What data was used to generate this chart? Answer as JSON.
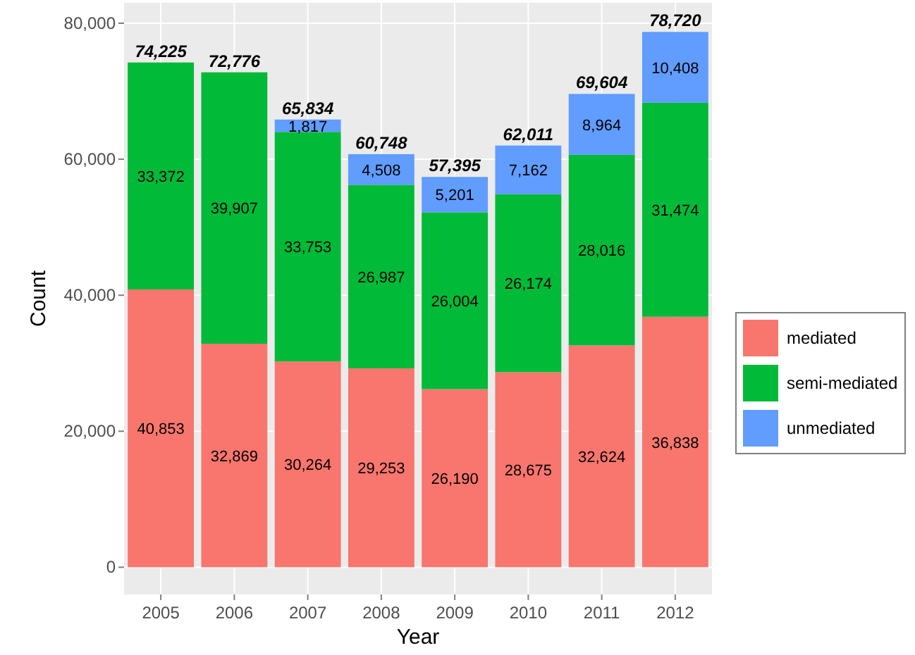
{
  "chart_data": {
    "type": "bar",
    "stacked": true,
    "xlabel": "Year",
    "ylabel": "Count",
    "categories": [
      "2005",
      "2006",
      "2007",
      "2008",
      "2009",
      "2010",
      "2011",
      "2012"
    ],
    "series": [
      {
        "name": "mediated",
        "color": "#f8766d",
        "values": [
          40853,
          32869,
          30264,
          29253,
          26190,
          28675,
          32624,
          36838
        ],
        "value_labels": [
          "40,853",
          "32,869",
          "30,264",
          "29,253",
          "26,190",
          "28,675",
          "32,624",
          "36,838"
        ]
      },
      {
        "name": "semi-mediated",
        "color": "#00ba38",
        "values": [
          33372,
          39907,
          33753,
          26987,
          26004,
          26174,
          28016,
          31474
        ],
        "value_labels": [
          "33,372",
          "39,907",
          "33,753",
          "26,987",
          "26,004",
          "26,174",
          "28,016",
          "31,474"
        ]
      },
      {
        "name": "unmediated",
        "color": "#619cff",
        "values": [
          0,
          0,
          1817,
          4508,
          5201,
          7162,
          8964,
          10408
        ],
        "value_labels": [
          null,
          null,
          "1,817",
          "4,508",
          "5,201",
          "7,162",
          "8,964",
          "10,408"
        ]
      }
    ],
    "totals": [
      "74,225",
      "72,776",
      "65,834",
      "60,748",
      "57,395",
      "62,011",
      "69,604",
      "78,720"
    ],
    "ylim": [
      -4000,
      83000
    ],
    "yticks": [
      {
        "value": 0,
        "label": "0"
      },
      {
        "value": 20000,
        "label": "20,000"
      },
      {
        "value": 40000,
        "label": "40,000"
      },
      {
        "value": 60000,
        "label": "60,000"
      },
      {
        "value": 80000,
        "label": "80,000"
      }
    ],
    "grid": true,
    "legend": "right"
  }
}
